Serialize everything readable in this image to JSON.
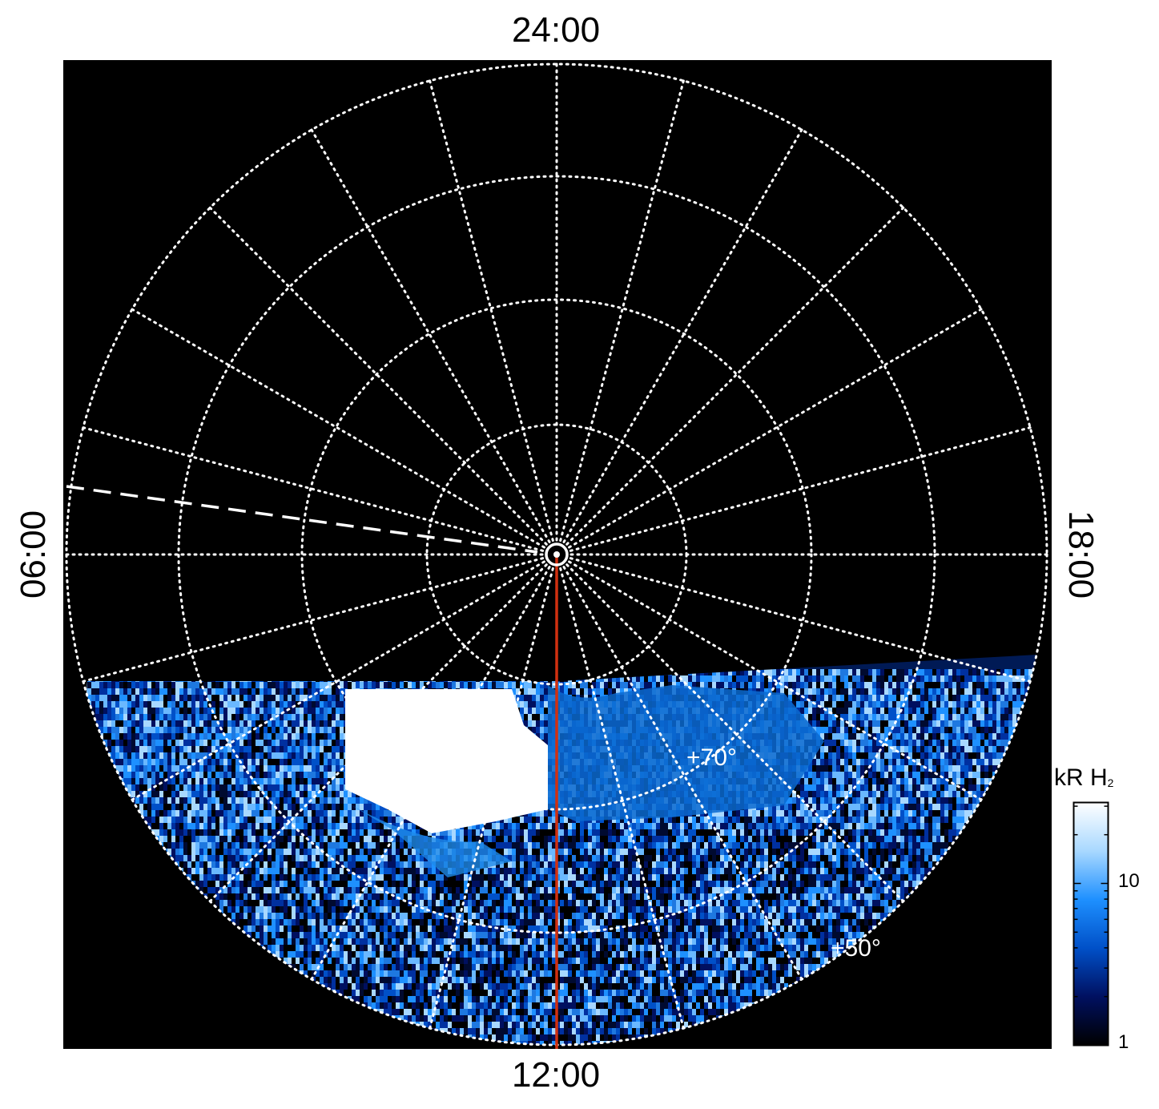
{
  "local_time_labels": {
    "top": "24:00",
    "bottom": "12:00",
    "left": "06:00",
    "right": "18:00"
  },
  "latitude_labels": [
    "+70°",
    "+50°"
  ],
  "colorbar": {
    "title": "kR H",
    "title_subscript": "2",
    "tick_labels": [
      "10",
      "1"
    ],
    "scale": "log",
    "colors": [
      "#000000",
      "#001060",
      "#0050c8",
      "#1e90ff",
      "#a8d8ff",
      "#ffffff"
    ]
  },
  "colors": {
    "background": "#000000",
    "grid": "#ffffff",
    "meridian_line": "#d03010",
    "dashed_line": "#ffffff"
  }
}
